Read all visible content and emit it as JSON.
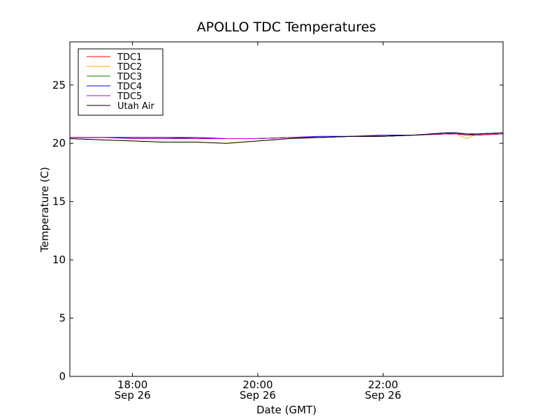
{
  "chart_data": {
    "type": "line",
    "title": "APOLLO TDC Temperatures",
    "xlabel": "Date (GMT)",
    "ylabel": "Temperature (C)",
    "xlim": [
      "Sep 26 17:00",
      "Sep 26 23:55"
    ],
    "ylim": [
      0,
      28.7
    ],
    "grid": false,
    "legend_position": "top-left",
    "y_ticks": [
      0,
      5,
      10,
      15,
      20,
      25
    ],
    "x_ticks": [
      {
        "time": "18:00",
        "date": "Sep 26"
      },
      {
        "time": "20:00",
        "date": "Sep 26"
      },
      {
        "time": "22:00",
        "date": "Sep 26"
      }
    ],
    "x": [
      "17:00",
      "17:30",
      "18:00",
      "18:30",
      "19:00",
      "19:30",
      "20:00",
      "20:30",
      "21:00",
      "21:30",
      "22:00",
      "22:30",
      "23:00",
      "23:10",
      "23:20",
      "23:30",
      "23:55"
    ],
    "series": [
      {
        "name": "TDC1",
        "color": "#ff0000",
        "values": [
          20.5,
          20.5,
          20.5,
          20.5,
          20.5,
          20.4,
          20.4,
          20.5,
          20.5,
          20.6,
          20.6,
          20.7,
          20.8,
          20.8,
          20.8,
          20.7,
          20.8
        ]
      },
      {
        "name": "TDC2",
        "color": "#ffa500",
        "values": [
          20.4,
          20.3,
          20.2,
          20.1,
          20.1,
          20.0,
          20.2,
          20.4,
          20.5,
          20.6,
          20.7,
          20.7,
          20.9,
          20.8,
          20.4,
          20.8,
          20.8
        ]
      },
      {
        "name": "TDC3",
        "color": "#008000",
        "values": [
          20.5,
          20.5,
          20.5,
          20.5,
          20.4,
          20.4,
          20.4,
          20.5,
          20.5,
          20.6,
          20.6,
          20.7,
          20.8,
          20.9,
          20.8,
          20.8,
          20.9
        ]
      },
      {
        "name": "TDC4",
        "color": "#0000ff",
        "values": [
          20.5,
          20.5,
          20.5,
          20.5,
          20.5,
          20.4,
          20.4,
          20.5,
          20.6,
          20.6,
          20.7,
          20.7,
          20.9,
          20.9,
          20.8,
          20.8,
          20.9
        ]
      },
      {
        "name": "TDC5",
        "color": "#bf00bf",
        "values": [
          20.5,
          20.5,
          20.4,
          20.4,
          20.4,
          20.4,
          20.4,
          20.5,
          20.5,
          20.6,
          20.6,
          20.7,
          20.8,
          20.8,
          20.7,
          20.7,
          20.8
        ]
      },
      {
        "name": "Utah Air",
        "color": "#000000",
        "values": [
          20.4,
          20.3,
          20.2,
          20.1,
          20.1,
          20.0,
          20.2,
          20.4,
          20.5,
          20.6,
          20.6,
          20.7,
          20.9,
          20.9,
          20.8,
          20.8,
          20.9
        ]
      }
    ]
  }
}
